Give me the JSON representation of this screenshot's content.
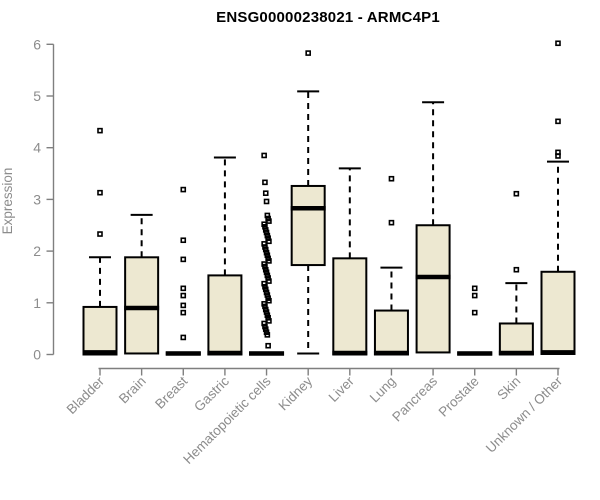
{
  "chart_data": {
    "type": "boxplot",
    "title": "ENSG00000238021 - ARMC4P1",
    "ylabel": "Expression",
    "ylim": [
      0,
      6
    ],
    "yticks": [
      0,
      1,
      2,
      3,
      4,
      5,
      6
    ],
    "grid": false,
    "categories": [
      "Bladder",
      "Brain",
      "Breast",
      "Gastric",
      "Hematopoietic cells",
      "Kidney",
      "Liver",
      "Lung",
      "Pancreas",
      "Prostate",
      "Skin",
      "Unknown / Other"
    ],
    "colors": {
      "box_fill": "#ede8d1",
      "box_border": "#000000",
      "median": "#000000",
      "whisker": "#000000",
      "outlier": "#000000",
      "axis": "#7f7f7f",
      "text": "#8c8c8c",
      "title": "#000000",
      "background": "#ffffff"
    },
    "boxes": [
      {
        "category": "Bladder",
        "q1": 0.0,
        "median": 0.04,
        "q3": 0.92,
        "whisker_low": 0.0,
        "whisker_high": 1.88,
        "outliers": [
          4.33,
          3.13,
          2.33
        ]
      },
      {
        "category": "Brain",
        "q1": 0.02,
        "median": 0.9,
        "q3": 1.88,
        "whisker_low": 0.0,
        "whisker_high": 2.7,
        "outliers": []
      },
      {
        "category": "Breast",
        "q1": 0.0,
        "median": 0.02,
        "q3": 0.04,
        "whisker_low": 0.0,
        "whisker_high": 0.04,
        "outliers": [
          3.19,
          2.21,
          1.84,
          1.28,
          1.14,
          0.95,
          0.81,
          0.33
        ]
      },
      {
        "category": "Gastric",
        "q1": 0.0,
        "median": 0.03,
        "q3": 1.53,
        "whisker_low": 0.0,
        "whisker_high": 3.81,
        "outliers": []
      },
      {
        "category": "Hematopoietic cells",
        "q1": 0.0,
        "median": 0.02,
        "q3": 0.04,
        "whisker_low": 0.0,
        "whisker_high": 0.04,
        "outliers": [
          3.85,
          3.33,
          3.12,
          2.96,
          2.69,
          2.63,
          2.58,
          2.52,
          2.47,
          2.41,
          2.36,
          2.3,
          2.25,
          2.19,
          2.14,
          2.08,
          2.03,
          1.97,
          1.92,
          1.86,
          1.81,
          1.75,
          1.7,
          1.64,
          1.59,
          1.53,
          1.48,
          1.42,
          1.37,
          1.31,
          1.26,
          1.2,
          1.15,
          1.09,
          1.04,
          0.98,
          0.93,
          0.87,
          0.82,
          0.76,
          0.71,
          0.65,
          0.6,
          0.54,
          0.49,
          0.43,
          0.38,
          0.17
        ]
      },
      {
        "category": "Kidney",
        "q1": 1.73,
        "median": 2.83,
        "q3": 3.26,
        "whisker_low": 0.02,
        "whisker_high": 5.09,
        "outliers": [
          5.83
        ]
      },
      {
        "category": "Liver",
        "q1": 0.0,
        "median": 0.03,
        "q3": 1.86,
        "whisker_low": 0.0,
        "whisker_high": 3.6,
        "outliers": []
      },
      {
        "category": "Lung",
        "q1": 0.0,
        "median": 0.03,
        "q3": 0.85,
        "whisker_low": 0.0,
        "whisker_high": 1.68,
        "outliers": [
          3.4,
          2.55
        ]
      },
      {
        "category": "Pancreas",
        "q1": 0.04,
        "median": 1.5,
        "q3": 2.5,
        "whisker_low": 0.04,
        "whisker_high": 4.88,
        "outliers": []
      },
      {
        "category": "Prostate",
        "q1": 0.0,
        "median": 0.02,
        "q3": 0.04,
        "whisker_low": 0.0,
        "whisker_high": 0.04,
        "outliers": [
          1.28,
          1.14,
          0.81
        ]
      },
      {
        "category": "Skin",
        "q1": 0.0,
        "median": 0.03,
        "q3": 0.6,
        "whisker_low": 0.0,
        "whisker_high": 1.38,
        "outliers": [
          3.11,
          1.64
        ]
      },
      {
        "category": "Unknown / Other",
        "q1": 0.01,
        "median": 0.04,
        "q3": 1.6,
        "whisker_low": 0.0,
        "whisker_high": 3.73,
        "outliers": [
          6.02,
          4.51,
          3.91,
          3.84
        ]
      }
    ]
  }
}
